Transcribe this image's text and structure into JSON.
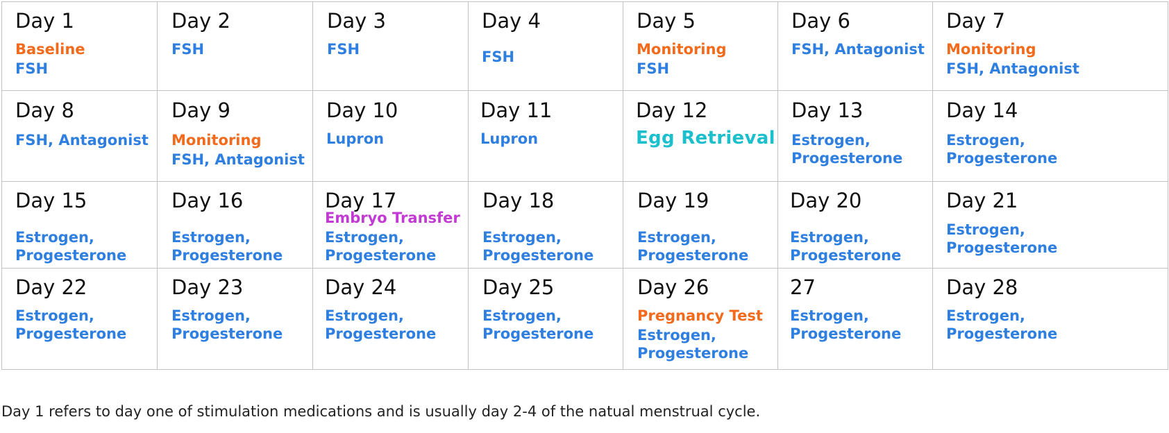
{
  "calendar": {
    "days": [
      {
        "title": "Day 1",
        "lines": [
          {
            "text": "Baseline",
            "color": "orange"
          },
          {
            "text": "FSH",
            "color": "blue"
          }
        ]
      },
      {
        "title": "Day 2",
        "lines": [
          {
            "text": "FSH",
            "color": "blue"
          }
        ]
      },
      {
        "title": "Day 3",
        "lines": [
          {
            "text": "FSH",
            "color": "blue"
          }
        ]
      },
      {
        "title": "Day 4",
        "lines": [
          {
            "text": "FSH",
            "color": "blue"
          }
        ]
      },
      {
        "title": "Day 5",
        "lines": [
          {
            "text": "Monitoring",
            "color": "orange"
          },
          {
            "text": "FSH",
            "color": "blue"
          }
        ]
      },
      {
        "title": "Day 6",
        "lines": [
          {
            "text": "FSH, Antagonist",
            "color": "blue"
          }
        ]
      },
      {
        "title": "Day 7",
        "lines": [
          {
            "text": "Monitoring",
            "color": "orange"
          },
          {
            "text": "FSH, Antagonist",
            "color": "blue"
          }
        ]
      },
      {
        "title": "Day 8",
        "lines": [
          {
            "text": "FSH, Antagonist",
            "color": "blue"
          }
        ]
      },
      {
        "title": "Day 9",
        "lines": [
          {
            "text": "Monitoring",
            "color": "orange"
          },
          {
            "text": "FSH, Antagonist",
            "color": "blue"
          }
        ]
      },
      {
        "title": "Day 10",
        "lines": [
          {
            "text": "Lupron",
            "color": "blue"
          }
        ]
      },
      {
        "title": "Day 11",
        "lines": [
          {
            "text": "Lupron",
            "color": "blue"
          }
        ]
      },
      {
        "title": "Day 12",
        "lines": [
          {
            "text": "Egg Retrieval",
            "color": "teal"
          }
        ]
      },
      {
        "title": "Day 13",
        "lines": [
          {
            "text": "Estrogen,",
            "color": "blue"
          },
          {
            "text": "Progesterone",
            "color": "blue"
          }
        ]
      },
      {
        "title": "Day 14",
        "lines": [
          {
            "text": "Estrogen,",
            "color": "blue"
          },
          {
            "text": "Progesterone",
            "color": "blue"
          }
        ]
      },
      {
        "title": "Day 15",
        "lines": [
          {
            "text": "Estrogen,",
            "color": "blue"
          },
          {
            "text": "Progesterone",
            "color": "blue"
          }
        ]
      },
      {
        "title": "Day 16",
        "lines": [
          {
            "text": "Estrogen,",
            "color": "blue"
          },
          {
            "text": "Progesterone",
            "color": "blue"
          }
        ]
      },
      {
        "title": "Day 17",
        "lines": [
          {
            "text": "Embryo Transfer",
            "color": "purple"
          },
          {
            "text": "Estrogen,",
            "color": "blue"
          },
          {
            "text": "Progesterone",
            "color": "blue"
          }
        ]
      },
      {
        "title": "Day 18",
        "lines": [
          {
            "text": "Estrogen,",
            "color": "blue"
          },
          {
            "text": "Progesterone",
            "color": "blue"
          }
        ]
      },
      {
        "title": "Day 19",
        "lines": [
          {
            "text": "Estrogen,",
            "color": "blue"
          },
          {
            "text": "Progesterone",
            "color": "blue"
          }
        ]
      },
      {
        "title": "Day 20",
        "lines": [
          {
            "text": "Estrogen,",
            "color": "blue"
          },
          {
            "text": "Progesterone",
            "color": "blue"
          }
        ]
      },
      {
        "title": "Day 21",
        "lines": [
          {
            "text": "Estrogen,",
            "color": "blue"
          },
          {
            "text": "Progesterone",
            "color": "blue"
          }
        ]
      },
      {
        "title": "Day 22",
        "lines": [
          {
            "text": "Estrogen,",
            "color": "blue"
          },
          {
            "text": "Progesterone",
            "color": "blue"
          }
        ]
      },
      {
        "title": "Day 23",
        "lines": [
          {
            "text": "Estrogen,",
            "color": "blue"
          },
          {
            "text": "Progesterone",
            "color": "blue"
          }
        ]
      },
      {
        "title": "Day 24",
        "lines": [
          {
            "text": "Estrogen,",
            "color": "blue"
          },
          {
            "text": "Progesterone",
            "color": "blue"
          }
        ]
      },
      {
        "title": "Day 25",
        "lines": [
          {
            "text": "Estrogen,",
            "color": "blue"
          },
          {
            "text": "Progesterone",
            "color": "blue"
          }
        ]
      },
      {
        "title": "Day 26",
        "lines": [
          {
            "text": "Pregnancy Test",
            "color": "orange"
          },
          {
            "text": "Estrogen,",
            "color": "blue"
          },
          {
            "text": "Progesterone",
            "color": "blue"
          }
        ]
      },
      {
        "title": "27",
        "lines": [
          {
            "text": "Estrogen,",
            "color": "blue"
          },
          {
            "text": "Progesterone",
            "color": "blue"
          }
        ]
      },
      {
        "title": "Day 28",
        "lines": [
          {
            "text": "Estrogen,",
            "color": "blue"
          },
          {
            "text": "Progesterone",
            "color": "blue"
          }
        ]
      }
    ]
  },
  "footnote": "Day 1 refers to day one of stimulation medications and is usually day 2-4 of the natual menstrual cycle.",
  "colors": {
    "blue": "#2f7fe0",
    "orange": "#f26b1d",
    "purple": "#c23ad3",
    "teal": "#1cbfcc",
    "border": "#c2c2c2"
  }
}
